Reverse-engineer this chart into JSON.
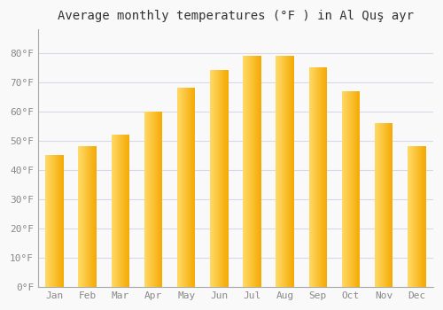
{
  "title": "Average monthly temperatures (°F ) in Al Quş ayr",
  "months": [
    "Jan",
    "Feb",
    "Mar",
    "Apr",
    "May",
    "Jun",
    "Jul",
    "Aug",
    "Sep",
    "Oct",
    "Nov",
    "Dec"
  ],
  "values": [
    45,
    48,
    52,
    60,
    68,
    74,
    79,
    79,
    75,
    67,
    56,
    48
  ],
  "bar_color_left": "#FFD966",
  "bar_color_right": "#F4A800",
  "background_color": "#f9f9f9",
  "grid_color": "#d8d8e8",
  "spine_color": "#aaaaaa",
  "ylim": [
    0,
    88
  ],
  "yticks": [
    0,
    10,
    20,
    30,
    40,
    50,
    60,
    70,
    80
  ],
  "ytick_labels": [
    "0°F",
    "10°F",
    "20°F",
    "30°F",
    "40°F",
    "50°F",
    "60°F",
    "70°F",
    "80°F"
  ],
  "title_fontsize": 10,
  "tick_fontsize": 8,
  "tick_color": "#888888",
  "bar_width": 0.55
}
